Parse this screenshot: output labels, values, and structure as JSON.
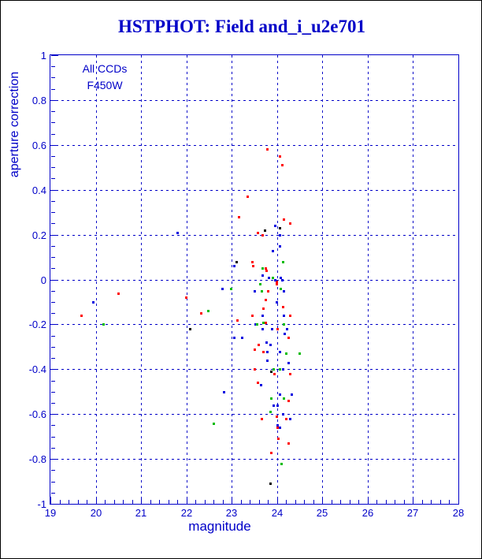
{
  "window": {
    "background": "#FFFFFF",
    "border_color": "#000000"
  },
  "chart_data": {
    "type": "scatter",
    "title": "HSTPHOT: Field and_i_u2e701",
    "xlabel": "magnitude",
    "ylabel": "aperture correction",
    "annotations": [
      "All CCDs",
      "F450W"
    ],
    "xlim": [
      19,
      28
    ],
    "ylim": [
      -1,
      1
    ],
    "x_ticks": [
      19,
      20,
      21,
      22,
      23,
      24,
      25,
      26,
      27,
      28
    ],
    "y_ticks": [
      1,
      0.8,
      0.6,
      0.4,
      0.2,
      0,
      -0.2,
      -0.4,
      -0.6,
      -0.8,
      -1
    ],
    "x_minor_step": 0.2,
    "y_minor_step": 0.05,
    "grid": "dashed",
    "legend": "none",
    "colors": {
      "axis": "#0000C8",
      "title": "#0000C8"
    },
    "series": [
      {
        "name": "red",
        "color": "#FF0000",
        "points": [
          [
            19.68,
            -0.16
          ],
          [
            20.49,
            -0.06
          ],
          [
            21.99,
            -0.08
          ],
          [
            22.32,
            -0.15
          ],
          [
            23.78,
            0.58
          ],
          [
            24.05,
            0.55
          ],
          [
            24.1,
            0.51
          ],
          [
            23.34,
            0.37
          ],
          [
            23.15,
            0.28
          ],
          [
            24.14,
            0.27
          ],
          [
            24.29,
            0.25
          ],
          [
            23.57,
            0.21
          ],
          [
            23.67,
            0.2
          ],
          [
            23.45,
            0.08
          ],
          [
            23.47,
            0.06
          ],
          [
            23.74,
            0.05
          ],
          [
            23.76,
            0.04
          ],
          [
            23.98,
            -0.01
          ],
          [
            23.98,
            -0.02
          ],
          [
            23.79,
            -0.05
          ],
          [
            23.74,
            -0.09
          ],
          [
            24.12,
            -0.12
          ],
          [
            23.69,
            -0.13
          ],
          [
            23.45,
            -0.16
          ],
          [
            24.28,
            -0.16
          ],
          [
            23.12,
            -0.18
          ],
          [
            23.74,
            -0.19
          ],
          [
            24.0,
            -0.22
          ],
          [
            24.24,
            -0.26
          ],
          [
            23.59,
            -0.29
          ],
          [
            23.5,
            -0.31
          ],
          [
            23.69,
            -0.32
          ],
          [
            23.5,
            -0.4
          ],
          [
            23.94,
            -0.42
          ],
          [
            24.29,
            -0.42
          ],
          [
            23.57,
            -0.46
          ],
          [
            24.25,
            -0.54
          ],
          [
            23.99,
            -0.61
          ],
          [
            23.66,
            -0.62
          ],
          [
            24.2,
            -0.62
          ],
          [
            24.0,
            -0.66
          ],
          [
            24.02,
            -0.71
          ],
          [
            24.24,
            -0.73
          ],
          [
            23.86,
            -0.77
          ]
        ]
      },
      {
        "name": "blue",
        "color": "#0000E0",
        "points": [
          [
            19.93,
            -0.1
          ],
          [
            21.79,
            0.21
          ],
          [
            22.78,
            -0.04
          ],
          [
            22.83,
            -0.5
          ],
          [
            23.95,
            0.24
          ],
          [
            24.05,
            0.2
          ],
          [
            24.05,
            0.15
          ],
          [
            23.9,
            0.13
          ],
          [
            23.04,
            0.06
          ],
          [
            23.67,
            0.02
          ],
          [
            23.81,
            0.01
          ],
          [
            23.95,
            0.0
          ],
          [
            24.07,
            0.01
          ],
          [
            24.1,
            0.0
          ],
          [
            23.5,
            -0.05
          ],
          [
            24.15,
            -0.05
          ],
          [
            23.98,
            -0.1
          ],
          [
            23.67,
            -0.16
          ],
          [
            24.14,
            -0.16
          ],
          [
            23.52,
            -0.2
          ],
          [
            23.67,
            -0.22
          ],
          [
            23.88,
            -0.22
          ],
          [
            24.22,
            -0.22
          ],
          [
            24.16,
            -0.24
          ],
          [
            23.05,
            -0.26
          ],
          [
            23.22,
            -0.26
          ],
          [
            23.76,
            -0.28
          ],
          [
            23.84,
            -0.29
          ],
          [
            23.77,
            -0.32
          ],
          [
            24.06,
            -0.32
          ],
          [
            23.78,
            -0.36
          ],
          [
            24.25,
            -0.37
          ],
          [
            24.12,
            -0.4
          ],
          [
            23.64,
            -0.47
          ],
          [
            24.05,
            -0.51
          ],
          [
            24.32,
            -0.51
          ],
          [
            23.92,
            -0.56
          ],
          [
            24.0,
            -0.56
          ],
          [
            24.13,
            -0.6
          ],
          [
            24.29,
            -0.62
          ],
          [
            24.0,
            -0.65
          ],
          [
            24.06,
            -0.66
          ]
        ]
      },
      {
        "name": "green",
        "color": "#00BB00",
        "points": [
          [
            20.16,
            -0.2
          ],
          [
            22.47,
            -0.14
          ],
          [
            22.6,
            -0.64
          ],
          [
            22.98,
            -0.04
          ],
          [
            24.12,
            0.08
          ],
          [
            23.67,
            0.05
          ],
          [
            23.9,
            0.01
          ],
          [
            23.62,
            -0.02
          ],
          [
            23.66,
            -0.05
          ],
          [
            24.07,
            -0.04
          ],
          [
            23.69,
            -0.19
          ],
          [
            23.55,
            -0.2
          ],
          [
            24.15,
            -0.2
          ],
          [
            24.2,
            -0.33
          ],
          [
            24.49,
            -0.33
          ],
          [
            23.92,
            -0.4
          ],
          [
            24.06,
            -0.4
          ],
          [
            23.87,
            -0.53
          ],
          [
            24.15,
            -0.53
          ],
          [
            23.84,
            -0.59
          ],
          [
            24.09,
            -0.82
          ]
        ]
      },
      {
        "name": "black",
        "color": "#000000",
        "points": [
          [
            22.07,
            -0.22
          ],
          [
            24.05,
            0.23
          ],
          [
            23.72,
            0.22
          ],
          [
            23.1,
            0.08
          ],
          [
            23.87,
            -0.41
          ],
          [
            23.84,
            -0.91
          ]
        ]
      }
    ]
  }
}
